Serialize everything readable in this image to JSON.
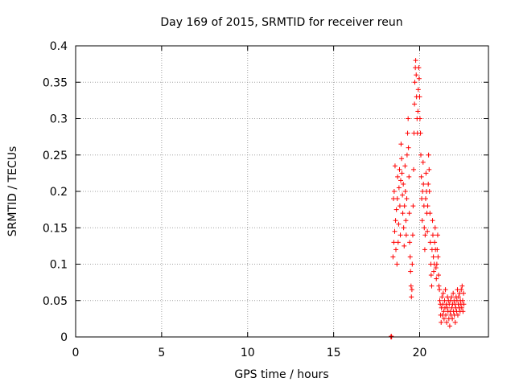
{
  "chart_data": {
    "type": "scatter",
    "title": "Day 169 of 2015, SRMTID for receiver reun",
    "xlabel": "GPS time / hours",
    "ylabel": "SRMTID / TECUs",
    "xlim": [
      0,
      24
    ],
    "ylim": [
      0,
      0.4
    ],
    "x_ticks": [
      0,
      5,
      10,
      15,
      20
    ],
    "y_ticks": [
      0,
      0.05,
      0.1,
      0.15,
      0.2,
      0.25,
      0.3,
      0.35,
      0.4
    ],
    "x_tick_labels": [
      "0",
      "5",
      "10",
      "15",
      "20"
    ],
    "y_tick_labels": [
      "0",
      "0.05",
      "0.1",
      "0.15",
      "0.2",
      "0.25",
      "0.3",
      "0.35",
      "0.4"
    ],
    "grid": true,
    "marker": "plus",
    "colors": {
      "points": "#ff0000",
      "grid": "#a0a0a0",
      "axis": "#000000"
    },
    "series": [
      {
        "points": [
          [
            18.33,
            0.0
          ],
          [
            18.35,
            0.001
          ],
          [
            18.37,
            0.0
          ],
          [
            18.45,
            0.11
          ],
          [
            18.48,
            0.19
          ],
          [
            18.5,
            0.13
          ],
          [
            18.52,
            0.2
          ],
          [
            18.55,
            0.145
          ],
          [
            18.57,
            0.235
          ],
          [
            18.6,
            0.16
          ],
          [
            18.62,
            0.12
          ],
          [
            18.65,
            0.175
          ],
          [
            18.68,
            0.1
          ],
          [
            18.7,
            0.19
          ],
          [
            18.72,
            0.22
          ],
          [
            18.75,
            0.13
          ],
          [
            18.78,
            0.155
          ],
          [
            18.8,
            0.205
          ],
          [
            18.83,
            0.23
          ],
          [
            18.85,
            0.18
          ],
          [
            18.88,
            0.14
          ],
          [
            18.9,
            0.215
          ],
          [
            18.92,
            0.265
          ],
          [
            18.95,
            0.245
          ],
          [
            18.97,
            0.225
          ],
          [
            19.0,
            0.195
          ],
          [
            19.02,
            0.17
          ],
          [
            19.05,
            0.21
          ],
          [
            19.07,
            0.15
          ],
          [
            19.1,
            0.125
          ],
          [
            19.12,
            0.18
          ],
          [
            19.15,
            0.235
          ],
          [
            19.17,
            0.2
          ],
          [
            19.2,
            0.16
          ],
          [
            19.22,
            0.14
          ],
          [
            19.25,
            0.19
          ],
          [
            19.27,
            0.25
          ],
          [
            19.3,
            0.28
          ],
          [
            19.33,
            0.3
          ],
          [
            19.35,
            0.26
          ],
          [
            19.38,
            0.22
          ],
          [
            19.4,
            0.17
          ],
          [
            19.42,
            0.13
          ],
          [
            19.45,
            0.11
          ],
          [
            19.47,
            0.09
          ],
          [
            19.5,
            0.07
          ],
          [
            19.52,
            0.055
          ],
          [
            19.55,
            0.065
          ],
          [
            19.57,
            0.1
          ],
          [
            19.6,
            0.14
          ],
          [
            19.62,
            0.18
          ],
          [
            19.65,
            0.23
          ],
          [
            19.67,
            0.28
          ],
          [
            19.7,
            0.32
          ],
          [
            19.72,
            0.35
          ],
          [
            19.75,
            0.37
          ],
          [
            19.77,
            0.38
          ],
          [
            19.8,
            0.36
          ],
          [
            19.82,
            0.33
          ],
          [
            19.85,
            0.3
          ],
          [
            19.87,
            0.28
          ],
          [
            19.9,
            0.31
          ],
          [
            19.92,
            0.34
          ],
          [
            19.95,
            0.37
          ],
          [
            19.97,
            0.355
          ],
          [
            20.0,
            0.33
          ],
          [
            20.02,
            0.3
          ],
          [
            20.05,
            0.28
          ],
          [
            20.07,
            0.25
          ],
          [
            20.1,
            0.22
          ],
          [
            20.12,
            0.19
          ],
          [
            20.15,
            0.16
          ],
          [
            20.17,
            0.2
          ],
          [
            20.2,
            0.24
          ],
          [
            20.22,
            0.21
          ],
          [
            20.25,
            0.18
          ],
          [
            20.27,
            0.15
          ],
          [
            20.3,
            0.12
          ],
          [
            20.32,
            0.14
          ],
          [
            20.35,
            0.19
          ],
          [
            20.37,
            0.225
          ],
          [
            20.4,
            0.2
          ],
          [
            20.42,
            0.17
          ],
          [
            20.45,
            0.145
          ],
          [
            20.47,
            0.18
          ],
          [
            20.5,
            0.21
          ],
          [
            20.52,
            0.25
          ],
          [
            20.55,
            0.23
          ],
          [
            20.57,
            0.2
          ],
          [
            20.6,
            0.17
          ],
          [
            20.62,
            0.13
          ],
          [
            20.65,
            0.1
          ],
          [
            20.67,
            0.085
          ],
          [
            20.7,
            0.07
          ],
          [
            20.72,
            0.12
          ],
          [
            20.75,
            0.16
          ],
          [
            20.77,
            0.14
          ],
          [
            20.8,
            0.11
          ],
          [
            20.82,
            0.09
          ],
          [
            20.85,
            0.1
          ],
          [
            20.87,
            0.13
          ],
          [
            20.9,
            0.15
          ],
          [
            20.92,
            0.12
          ],
          [
            20.95,
            0.095
          ],
          [
            20.97,
            0.08
          ],
          [
            21.0,
            0.1
          ],
          [
            21.02,
            0.12
          ],
          [
            21.05,
            0.14
          ],
          [
            21.07,
            0.11
          ],
          [
            21.1,
            0.085
          ],
          [
            21.12,
            0.07
          ],
          [
            21.15,
            0.065
          ],
          [
            21.17,
            0.05
          ],
          [
            21.2,
            0.045
          ],
          [
            21.22,
            0.03
          ],
          [
            21.25,
            0.02
          ],
          [
            21.27,
            0.04
          ],
          [
            21.3,
            0.055
          ],
          [
            21.32,
            0.03
          ],
          [
            21.35,
            0.045
          ],
          [
            21.37,
            0.06
          ],
          [
            21.4,
            0.035
          ],
          [
            21.42,
            0.025
          ],
          [
            21.45,
            0.05
          ],
          [
            21.47,
            0.04
          ],
          [
            21.5,
            0.065
          ],
          [
            21.52,
            0.03
          ],
          [
            21.55,
            0.045
          ],
          [
            21.57,
            0.02
          ],
          [
            21.6,
            0.04
          ],
          [
            21.62,
            0.055
          ],
          [
            21.65,
            0.035
          ],
          [
            21.67,
            0.05
          ],
          [
            21.7,
            0.025
          ],
          [
            21.72,
            0.045
          ],
          [
            21.75,
            0.015
          ],
          [
            21.77,
            0.035
          ],
          [
            21.8,
            0.05
          ],
          [
            21.82,
            0.03
          ],
          [
            21.85,
            0.055
          ],
          [
            21.87,
            0.04
          ],
          [
            21.9,
            0.025
          ],
          [
            21.92,
            0.045
          ],
          [
            21.95,
            0.06
          ],
          [
            21.97,
            0.035
          ],
          [
            22.0,
            0.05
          ],
          [
            22.02,
            0.03
          ],
          [
            22.05,
            0.045
          ],
          [
            22.07,
            0.02
          ],
          [
            22.1,
            0.04
          ],
          [
            22.12,
            0.055
          ],
          [
            22.15,
            0.035
          ],
          [
            22.17,
            0.05
          ],
          [
            22.2,
            0.065
          ],
          [
            22.22,
            0.03
          ],
          [
            22.25,
            0.045
          ],
          [
            22.27,
            0.055
          ],
          [
            22.3,
            0.04
          ],
          [
            22.32,
            0.06
          ],
          [
            22.35,
            0.035
          ],
          [
            22.37,
            0.05
          ],
          [
            22.4,
            0.045
          ],
          [
            22.42,
            0.065
          ],
          [
            22.45,
            0.04
          ],
          [
            22.47,
            0.07
          ],
          [
            22.5,
            0.05
          ],
          [
            22.52,
            0.035
          ],
          [
            22.55,
            0.06
          ],
          [
            22.57,
            0.045
          ]
        ]
      }
    ]
  }
}
